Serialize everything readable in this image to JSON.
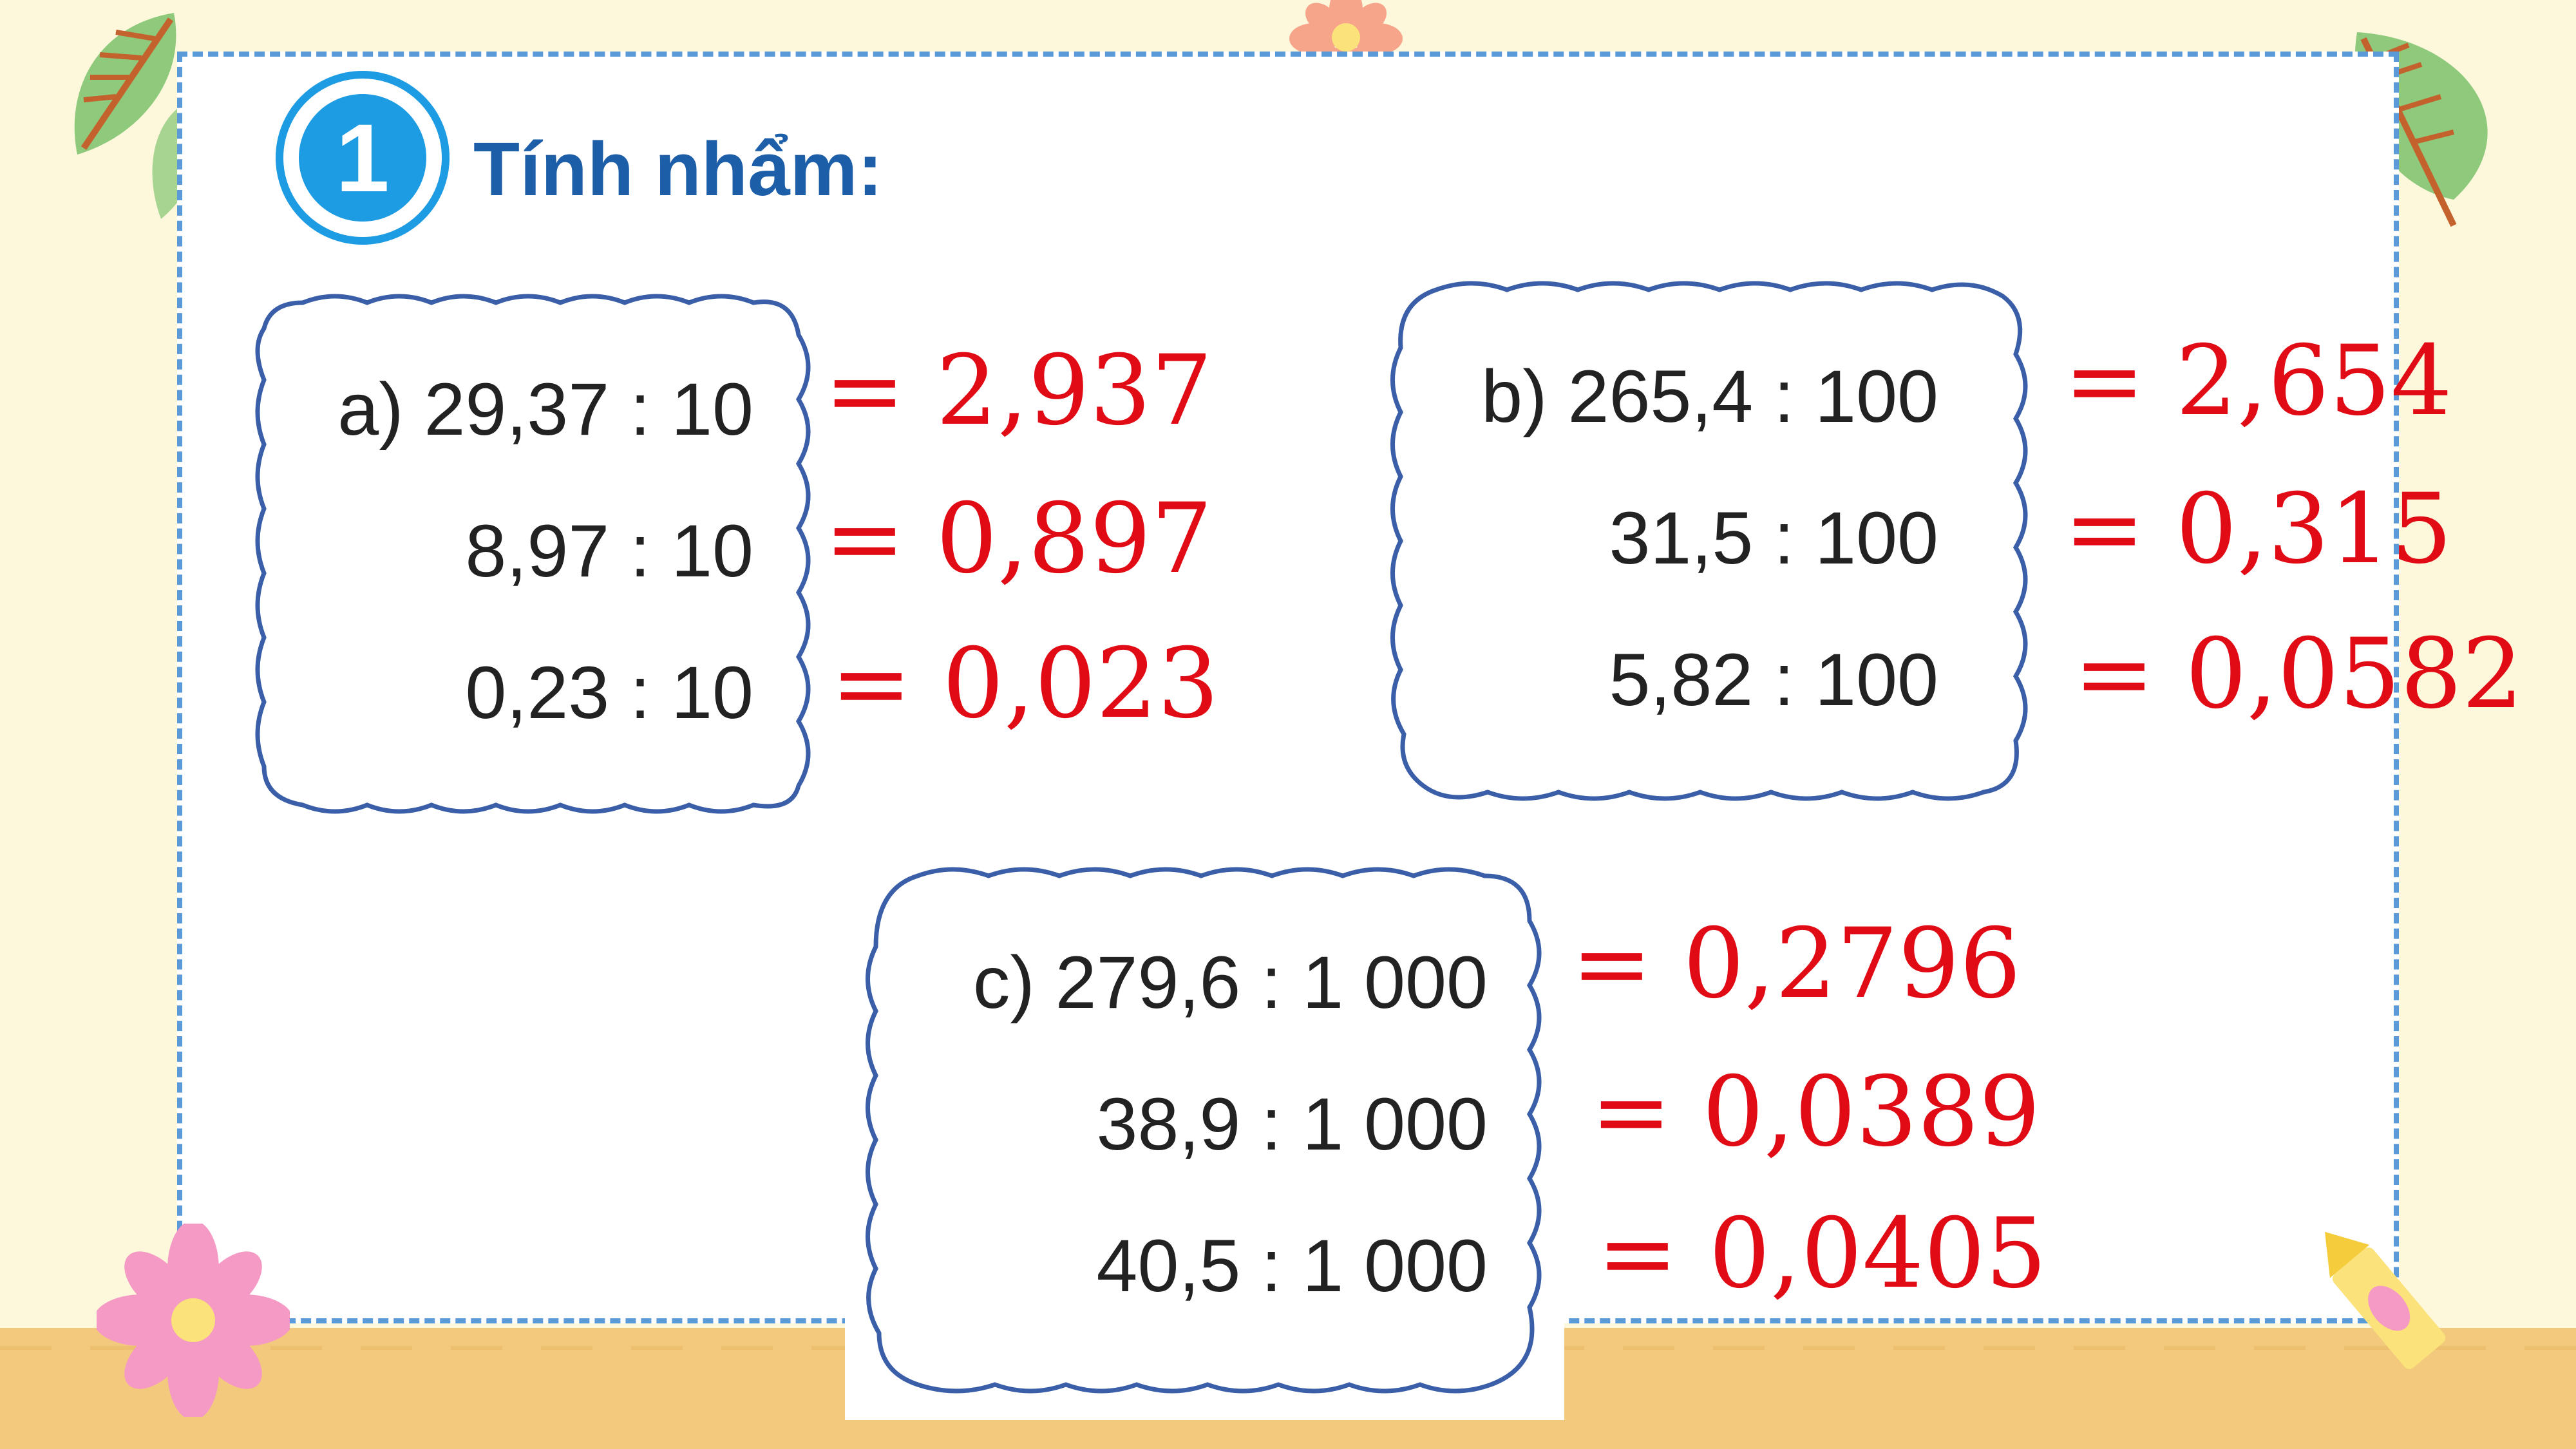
{
  "exercise": {
    "number": "1",
    "title": "Tính nhẩm:"
  },
  "groups": {
    "a": {
      "rows": [
        {
          "expr": "a) 29,37 : 10",
          "answer": "= 2,937"
        },
        {
          "expr": "8,97 : 10",
          "answer": "= 0,897"
        },
        {
          "expr": "0,23 : 10",
          "answer": "= 0,023"
        }
      ]
    },
    "b": {
      "rows": [
        {
          "expr": "b) 265,4 : 100",
          "answer": "= 2,654"
        },
        {
          "expr": "31,5 : 100",
          "answer": "= 0,315"
        },
        {
          "expr": "5,82 : 100",
          "answer": "= 0,0582"
        }
      ]
    },
    "c": {
      "rows": [
        {
          "expr": "c) 279,6 : 1 000",
          "answer": "= 0,2796"
        },
        {
          "expr": "38,9 : 1 000",
          "answer": "= 0,0389"
        },
        {
          "expr": "40,5 : 1 000",
          "answer": "= 0,0405"
        }
      ]
    }
  },
  "colors": {
    "accent": "#1d9be3",
    "title": "#1c5ea8",
    "answer": "#e10b16",
    "frame": "#5b9ad9",
    "cloud_outline": "#3a5fa8",
    "background": "#fdf8dc",
    "ground": "#f2c97d"
  },
  "decorations": [
    "leaf-icon",
    "flower-icon",
    "crayon-icon"
  ]
}
